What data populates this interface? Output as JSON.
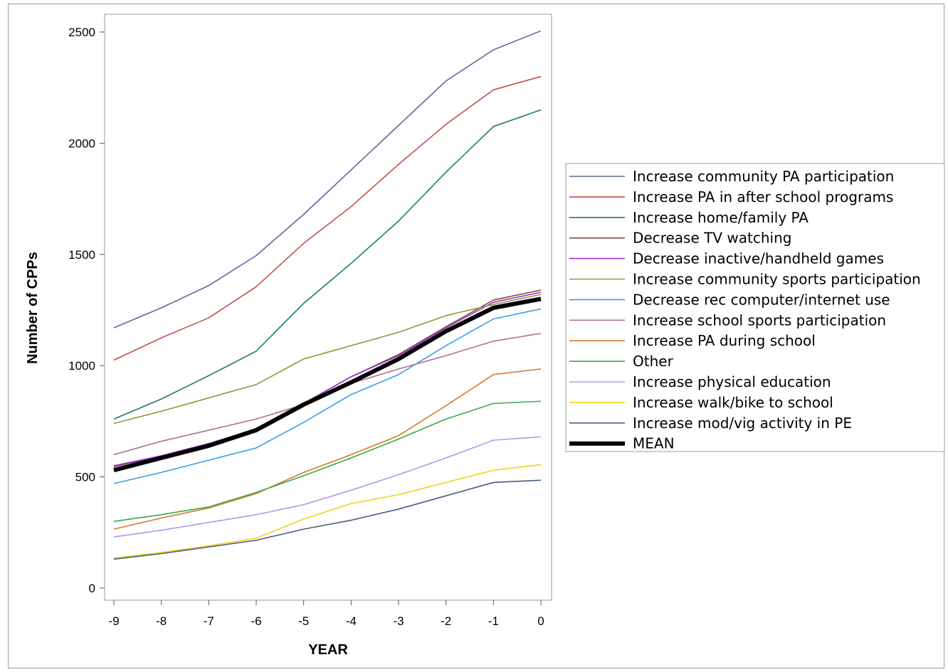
{
  "chart_data": {
    "type": "line",
    "title": "",
    "xlabel": "YEAR",
    "ylabel": "Number of CPPs",
    "x": [
      -9,
      -8,
      -7,
      -6,
      -5,
      -4,
      -3,
      -2,
      -1,
      0
    ],
    "x_ticks": [
      "-9",
      "-8",
      "-7",
      "-6",
      "-5",
      "-4",
      "-3",
      "-2",
      "-1",
      "0"
    ],
    "y_ticks": [
      "0",
      "500",
      "1000",
      "1500",
      "2000",
      "2500"
    ],
    "xlim": [
      -9,
      0
    ],
    "ylim": [
      0,
      2500
    ],
    "grid": false,
    "legend_position": "right",
    "series": [
      {
        "name": "Increase community PA participation",
        "color": "#5b6aa0",
        "values": [
          1170,
          1260,
          1360,
          1495,
          1680,
          1880,
          2080,
          2280,
          2420,
          2505
        ]
      },
      {
        "name": "Increase PA in after school programs",
        "color": "#c0504d",
        "values": [
          1025,
          1125,
          1215,
          1355,
          1550,
          1715,
          1905,
          2085,
          2240,
          2300
        ]
      },
      {
        "name": "Increase home/family PA",
        "color": "#1f7a6e",
        "values": [
          760,
          850,
          955,
          1065,
          1280,
          1460,
          1650,
          1870,
          2075,
          2150
        ]
      },
      {
        "name": "Decrease TV watching",
        "color": "#7a4b3a",
        "values": [
          545,
          595,
          645,
          715,
          830,
          950,
          1050,
          1175,
          1295,
          1340
        ]
      },
      {
        "name": "Decrease inactive/handheld games",
        "color": "#9b30d0",
        "values": [
          550,
          595,
          650,
          715,
          830,
          950,
          1045,
          1170,
          1285,
          1330
        ]
      },
      {
        "name": "Increase community sports participation",
        "color": "#8f9a3a",
        "values": [
          740,
          795,
          855,
          915,
          1030,
          1090,
          1150,
          1225,
          1275,
          1320
        ]
      },
      {
        "name": "Decrease rec computer/internet use",
        "color": "#3a9ee8",
        "values": [
          470,
          520,
          575,
          630,
          745,
          870,
          960,
          1090,
          1210,
          1255
        ]
      },
      {
        "name": "Increase school sports participation",
        "color": "#b5708a",
        "values": [
          600,
          660,
          710,
          760,
          825,
          920,
          985,
          1045,
          1110,
          1145
        ]
      },
      {
        "name": "Increase PA during school",
        "color": "#d4782c",
        "values": [
          265,
          315,
          360,
          425,
          520,
          600,
          685,
          820,
          960,
          985
        ]
      },
      {
        "name": "Other",
        "color": "#3aa845",
        "values": [
          300,
          330,
          365,
          430,
          505,
          585,
          670,
          760,
          830,
          840
        ]
      },
      {
        "name": "Increase physical education",
        "color": "#b695f0",
        "values": [
          230,
          260,
          295,
          330,
          375,
          440,
          510,
          585,
          665,
          680
        ]
      },
      {
        "name": "Increase walk/bike to school",
        "color": "#f2d21a",
        "values": [
          135,
          160,
          190,
          225,
          310,
          380,
          420,
          475,
          530,
          555
        ]
      },
      {
        "name": "Increase mod/vig activity in PE",
        "color": "#4a5a82",
        "values": [
          130,
          155,
          185,
          215,
          265,
          305,
          355,
          415,
          475,
          485
        ]
      },
      {
        "name": "MEAN",
        "color": "#000000",
        "values": [
          530,
          585,
          640,
          710,
          825,
          925,
          1030,
          1155,
          1260,
          1300
        ],
        "bold": true
      }
    ]
  }
}
